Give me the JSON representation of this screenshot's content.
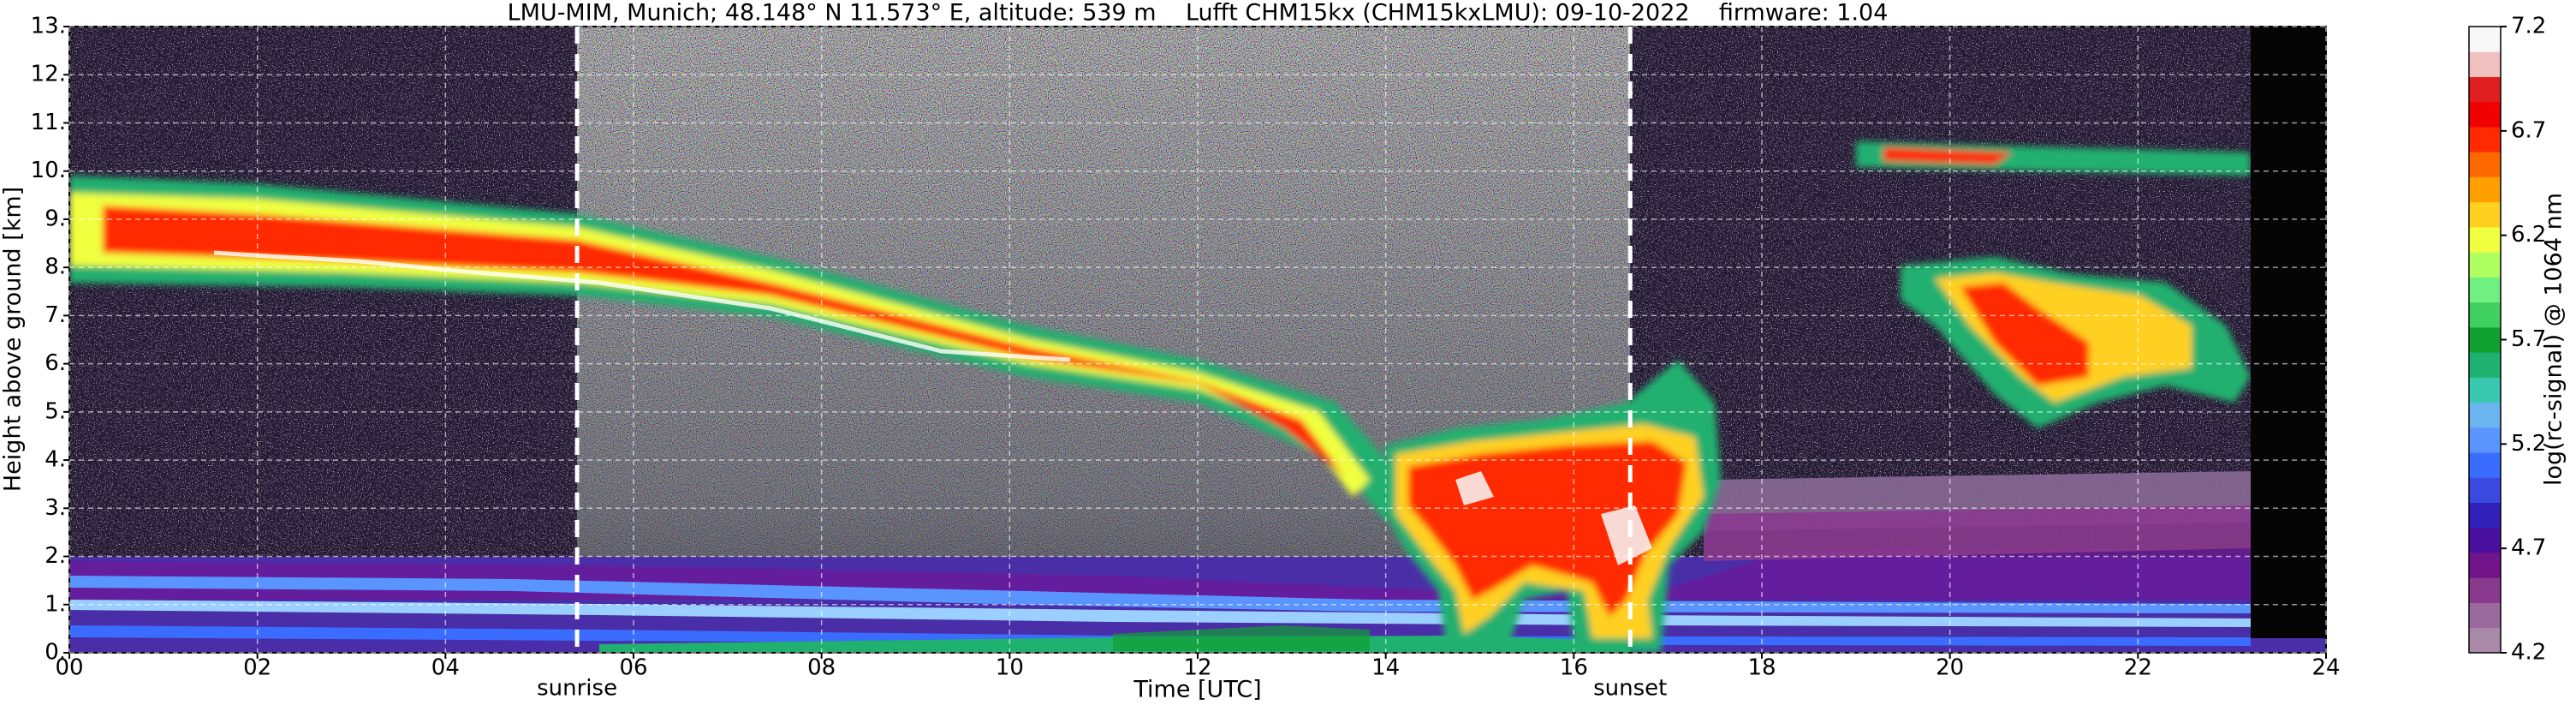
{
  "chart_data": {
    "type": "heatmap",
    "title": "LMU-MIM, Munich; 48.148° N 11.573° E, altitude: 539 m    Lufft CHM15kx (CHM15kxLMU): 09-10-2022    firmware: 1.04",
    "xlabel": "Time [UTC]",
    "ylabel": "Height above ground [km]",
    "xlim": [
      0,
      24
    ],
    "xticks": [
      {
        "value": 0,
        "label": "00"
      },
      {
        "value": 2,
        "label": "02"
      },
      {
        "value": 4,
        "label": "04"
      },
      {
        "value": 6,
        "label": "06"
      },
      {
        "value": 8,
        "label": "08"
      },
      10,
      12,
      14,
      16,
      18,
      20,
      22,
      24
    ],
    "ylim": [
      0,
      13
    ],
    "yticks": [
      {
        "value": 0,
        "label": "0."
      },
      {
        "value": 1,
        "label": "1."
      },
      {
        "value": 2,
        "label": "2."
      },
      {
        "value": 3,
        "label": "3."
      },
      {
        "value": 4,
        "label": "4."
      },
      {
        "value": 5,
        "label": "5."
      },
      {
        "value": 6,
        "label": "6."
      },
      {
        "value": 7,
        "label": "7."
      },
      {
        "value": 8,
        "label": "8."
      },
      {
        "value": 9,
        "label": "9."
      },
      {
        "value": 10,
        "label": "10."
      },
      {
        "value": 11,
        "label": "11."
      },
      {
        "value": 12,
        "label": "12."
      },
      {
        "value": 13,
        "label": "13."
      }
    ],
    "grid": true,
    "annotations": [
      {
        "x": 5.4,
        "text": "sunrise"
      },
      {
        "x": 16.6,
        "text": "sunset"
      }
    ],
    "colorbar": {
      "label": "log(rc-signal) @ 1064 nm",
      "clim": [
        4.2,
        7.2
      ],
      "ticks": [
        4.2,
        4.7,
        5.2,
        5.7,
        6.2,
        6.7,
        7.2
      ],
      "colormap": [
        "#a88aa8",
        "#9a6a9e",
        "#8a3a8e",
        "#72148a",
        "#4a10a0",
        "#3020b8",
        "#3a4ae0",
        "#3a6cff",
        "#5a94ff",
        "#6ab4f0",
        "#38c8b0",
        "#20b070",
        "#10a030",
        "#40d060",
        "#70f080",
        "#b0ff60",
        "#f0ff40",
        "#ffd020",
        "#ffa000",
        "#ff6a00",
        "#ff2a00",
        "#f00000",
        "#e02020",
        "#f0c0c0",
        "#f8f8f8"
      ]
    }
  }
}
